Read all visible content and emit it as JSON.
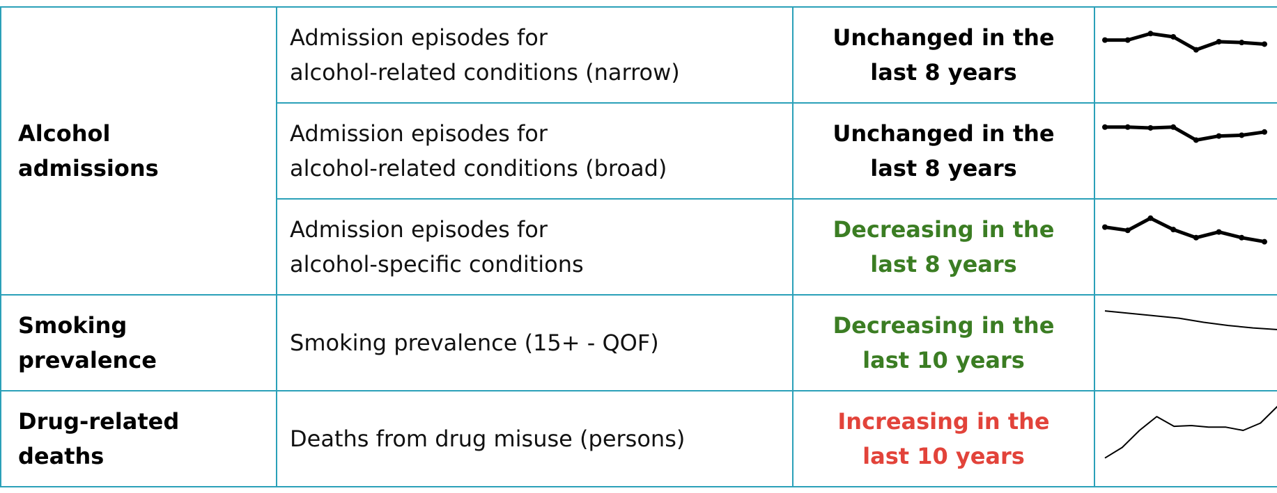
{
  "table": {
    "rows": [
      {
        "group": {
          "lines": [
            "Alcohol",
            "admissions"
          ],
          "rowspan": 3
        },
        "indicator": [
          "Admission episodes for",
          "alcohol-related conditions (narrow)"
        ],
        "status": {
          "lines": [
            "Unchanged in the",
            "last 8 years"
          ],
          "color": "#000000"
        },
        "trend": {
          "values": [
            80,
            80,
            88,
            84,
            68,
            78,
            77,
            75
          ],
          "markers": true
        }
      },
      {
        "indicator": [
          "Admission episodes for",
          "alcohol-related conditions (broad)"
        ],
        "status": {
          "lines": [
            "Unchanged in the",
            "last 8 years"
          ],
          "color": "#000000"
        },
        "trend": {
          "values": [
            91,
            91,
            90,
            91,
            75,
            80,
            81,
            85
          ],
          "markers": true
        }
      },
      {
        "indicator": [
          "Admission episodes for",
          "alcohol-specific conditions"
        ],
        "status": {
          "lines": [
            "Decreasing in the",
            "last 8 years"
          ],
          "color": "#3b7d23"
        },
        "trend": {
          "values": [
            86,
            82,
            97,
            83,
            73,
            80,
            73,
            68
          ],
          "markers": true
        }
      },
      {
        "group": {
          "lines": [
            "Smoking",
            "prevalence"
          ],
          "rowspan": 1
        },
        "indicator": [
          "Smoking prevalence (15+ - QOF)"
        ],
        "status": {
          "lines": [
            "Decreasing in the",
            "last 10 years"
          ],
          "color": "#3b7d23"
        },
        "trend": {
          "values": [
            101,
            98,
            95,
            92,
            87,
            83,
            80,
            78
          ],
          "markers": false
        }
      },
      {
        "group": {
          "lines": [
            "Drug-related",
            "deaths"
          ],
          "rowspan": 1
        },
        "indicator": [
          "Deaths from drug misuse (persons)"
        ],
        "status": {
          "lines": [
            "Increasing in the",
            "last 10 years"
          ],
          "color": "#e2433a"
        },
        "trend": {
          "values": [
            38,
            51,
            72,
            89,
            77,
            78,
            76,
            76,
            72,
            81,
            102
          ],
          "markers": false
        }
      }
    ]
  }
}
